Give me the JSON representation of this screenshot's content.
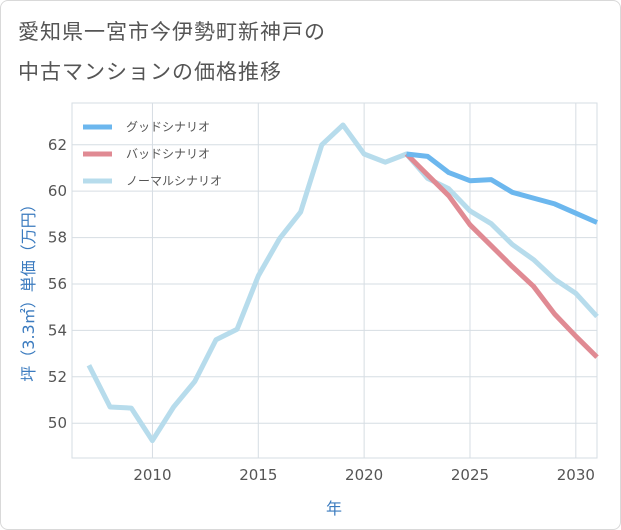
{
  "title_line1": "愛知県一宮市今伊勢町新神戸の",
  "title_line2": "中古マンションの価格推移",
  "chart_data": {
    "type": "line",
    "xlabel": "年",
    "ylabel": "坪（3.3㎡）単価（万円）",
    "xlim": [
      2006.2,
      2031
    ],
    "ylim": [
      48.5,
      63.8
    ],
    "xticks": [
      2010,
      2015,
      2020,
      2025,
      2030
    ],
    "yticks": [
      50,
      52,
      54,
      56,
      58,
      60,
      62
    ],
    "grid": true,
    "legend_position": "top-left",
    "series": [
      {
        "name": "グッドシナリオ",
        "color": "#6cb7ee",
        "x": [
          2022,
          2023,
          2024,
          2025,
          2026,
          2027,
          2028,
          2029,
          2030,
          2031
        ],
        "y": [
          61.6,
          61.5,
          60.8,
          60.45,
          60.5,
          59.95,
          59.7,
          59.45,
          59.05,
          58.65
        ]
      },
      {
        "name": "バッドシナリオ",
        "color": "#e08a93",
        "x": [
          2022,
          2023,
          2024,
          2025,
          2026,
          2027,
          2028,
          2029,
          2030,
          2031
        ],
        "y": [
          61.6,
          60.7,
          59.8,
          58.55,
          57.65,
          56.75,
          55.9,
          54.7,
          53.75,
          52.85
        ]
      },
      {
        "name": "ノーマルシナリオ",
        "color": "#b7dcec",
        "x": [
          2007,
          2008,
          2009,
          2010,
          2011,
          2012,
          2013,
          2014,
          2015,
          2016,
          2017,
          2018,
          2019,
          2020,
          2021,
          2022,
          2023,
          2024,
          2025,
          2026,
          2027,
          2028,
          2029,
          2030,
          2031
        ],
        "y": [
          52.5,
          50.7,
          50.65,
          49.25,
          50.7,
          51.8,
          53.6,
          54.05,
          56.35,
          57.95,
          59.1,
          62.0,
          62.85,
          61.6,
          61.25,
          61.6,
          60.55,
          60.1,
          59.15,
          58.6,
          57.7,
          57.05,
          56.2,
          55.6,
          54.6
        ]
      }
    ]
  }
}
